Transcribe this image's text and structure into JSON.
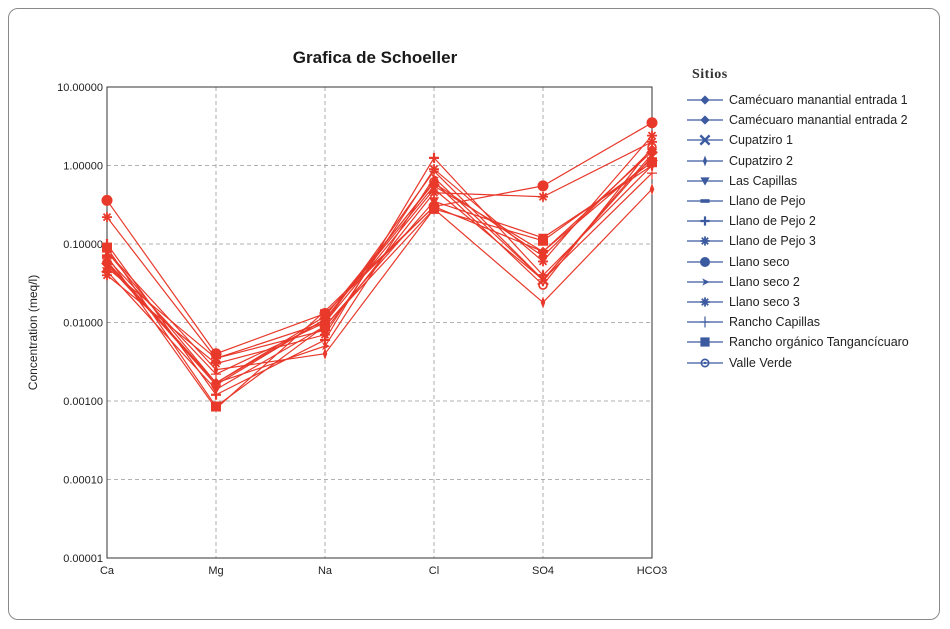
{
  "chart_data": {
    "type": "line",
    "title": "Grafica de Schoeller",
    "ylabel": "Concentration (meq/l)",
    "xlabel": "",
    "y_scale": "log",
    "ylim": [
      1e-05,
      10
    ],
    "grid": true,
    "legend_title": "Sitios",
    "legend_position": "right",
    "categories": [
      "Ca",
      "Mg",
      "Na",
      "Cl",
      "SO4",
      "HCO3"
    ],
    "y_ticks": [
      {
        "value": 10,
        "label": "10.00000"
      },
      {
        "value": 1,
        "label": "1.00000"
      },
      {
        "value": 0.1,
        "label": "0.10000"
      },
      {
        "value": 0.01,
        "label": "0.01000"
      },
      {
        "value": 0.001,
        "label": "0.00100"
      },
      {
        "value": 0.0001,
        "label": "0.00010"
      },
      {
        "value": 1e-05,
        "label": "0.00001"
      }
    ],
    "series_color": "#e8392b",
    "legend_color": "#3c5aa0",
    "series": [
      {
        "name": "Camécuaro manantial entrada 1",
        "marker": "diamond",
        "values": [
          0.06,
          0.0017,
          0.011,
          0.55,
          0.08,
          1.5
        ]
      },
      {
        "name": "Camécuaro manantial entrada 2",
        "marker": "diamond",
        "values": [
          0.055,
          0.0017,
          0.012,
          0.6,
          0.07,
          1.6
        ]
      },
      {
        "name": "Cupatziro 1",
        "marker": "x",
        "values": [
          0.05,
          0.0035,
          0.01,
          0.5,
          0.035,
          1.3
        ]
      },
      {
        "name": "Cupatziro 2",
        "marker": "thin-diamond",
        "values": [
          0.08,
          0.0025,
          0.004,
          0.28,
          0.018,
          0.5
        ]
      },
      {
        "name": "Las Capillas",
        "marker": "triangle-down",
        "values": [
          0.045,
          0.0014,
          0.009,
          0.35,
          0.12,
          1.0
        ]
      },
      {
        "name": "Llano de Pejo",
        "marker": "dash",
        "values": [
          0.07,
          0.0008,
          0.014,
          0.3,
          0.08,
          1.2
        ]
      },
      {
        "name": "Llano de Pejo 2",
        "marker": "plus",
        "values": [
          0.1,
          0.0012,
          0.006,
          1.25,
          0.04,
          1.0
        ]
      },
      {
        "name": "Llano de Pejo 3",
        "marker": "asterisk",
        "values": [
          0.04,
          0.003,
          0.007,
          0.9,
          0.06,
          2.4
        ]
      },
      {
        "name": "Llano seco",
        "marker": "circle",
        "values": [
          0.36,
          0.004,
          0.013,
          0.3,
          0.55,
          3.5
        ]
      },
      {
        "name": "Llano seco 2",
        "marker": "arrow",
        "values": [
          0.08,
          0.0017,
          0.005,
          0.7,
          0.035,
          1.4
        ]
      },
      {
        "name": "Llano seco 3",
        "marker": "asterisk",
        "values": [
          0.22,
          0.0035,
          0.008,
          0.45,
          0.4,
          2.0
        ]
      },
      {
        "name": "Rancho Capillas",
        "marker": "thin-plus",
        "values": [
          0.065,
          0.0022,
          0.01,
          0.85,
          0.035,
          0.8
        ]
      },
      {
        "name": "Rancho orgánico Tangancícuaro",
        "marker": "square",
        "values": [
          0.09,
          0.00085,
          0.009,
          0.28,
          0.11,
          1.1
        ]
      },
      {
        "name": "Valle Verde",
        "marker": "ring",
        "values": [
          0.058,
          0.0016,
          0.011,
          0.62,
          0.03,
          1.7
        ]
      }
    ]
  }
}
